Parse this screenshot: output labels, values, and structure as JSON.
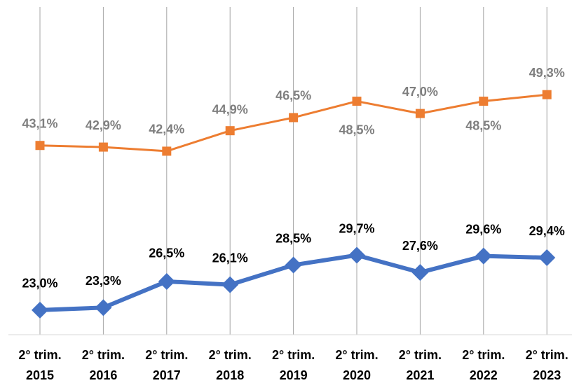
{
  "chart_data": {
    "type": "line",
    "categories": [
      [
        "2° trim.",
        "2015"
      ],
      [
        "2° trim.",
        "2016"
      ],
      [
        "2° trim.",
        "2017"
      ],
      [
        "2° trim.",
        "2018"
      ],
      [
        "2° trim.",
        "2019"
      ],
      [
        "2° trim.",
        "2020"
      ],
      [
        "2° trim.",
        "2021"
      ],
      [
        "2° trim.",
        "2022"
      ],
      [
        "2° trim.",
        "2023"
      ]
    ],
    "series": [
      {
        "color": "#ed7d31",
        "values": [
          43.1,
          42.9,
          42.4,
          44.9,
          46.5,
          48.5,
          47.0,
          48.5,
          49.3
        ],
        "value_labels": [
          "43,1%",
          "42,9%",
          "42,4%",
          "44,9%",
          "46,5%",
          "48,5%",
          "47,0%",
          "48,5%",
          "49,3%"
        ]
      },
      {
        "color": "#4472c4",
        "values": [
          23.0,
          23.3,
          26.5,
          26.1,
          28.5,
          29.7,
          27.6,
          29.6,
          29.4
        ],
        "value_labels": [
          "23,0%",
          "23,3%",
          "26,5%",
          "26,1%",
          "28,5%",
          "29,7%",
          "27,6%",
          "29,6%",
          "29,4%"
        ]
      }
    ],
    "ylim": [
      20,
      60
    ],
    "grid": true
  }
}
